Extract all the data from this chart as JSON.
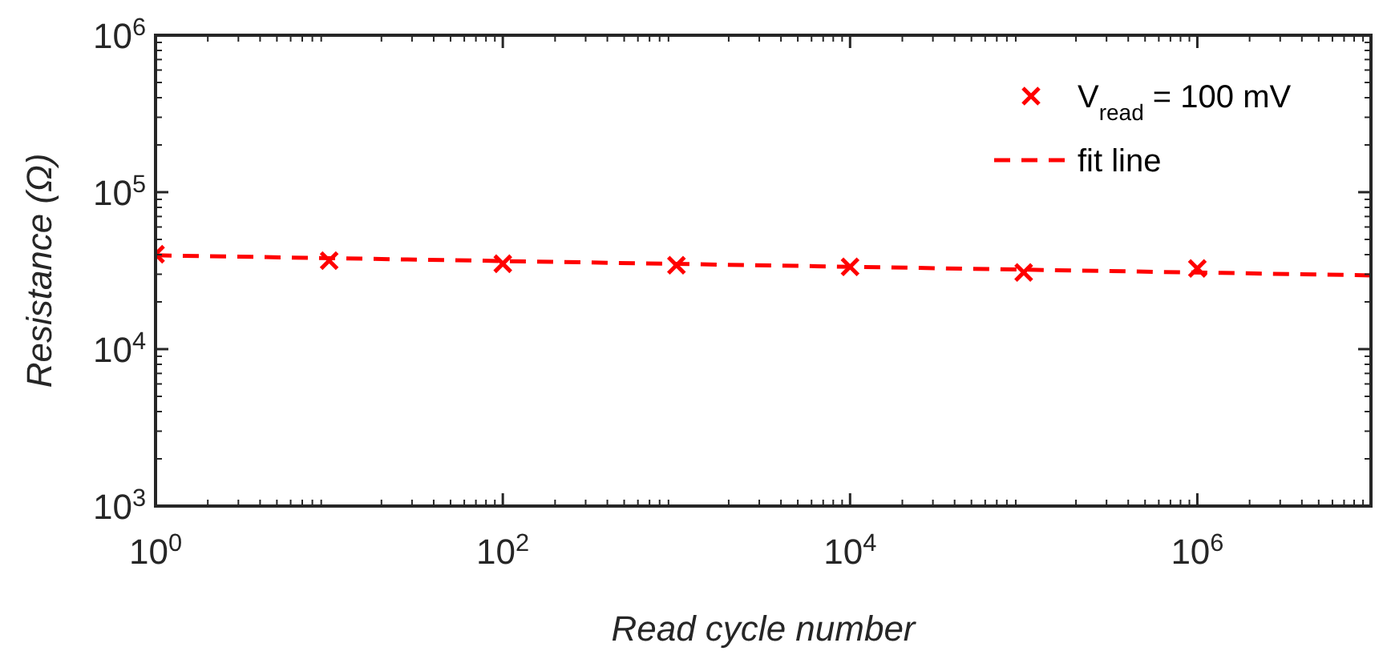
{
  "chart_data": {
    "type": "scatter",
    "xlabel": "Read cycle number",
    "ylabel": "Resistance (Ω)",
    "log": "xy",
    "xlim": [
      1,
      10000000
    ],
    "ylim": [
      1000,
      1000000
    ],
    "xticks": [
      {
        "value": 1,
        "label": "10$^{0}$"
      },
      {
        "value": 100,
        "label": "10$^{2}$"
      },
      {
        "value": 10000,
        "label": "10$^{4}$"
      },
      {
        "value": 1000000,
        "label": "10$^{6}$"
      }
    ],
    "yticks": [
      {
        "value": 1000,
        "label": "10$^{3}$"
      },
      {
        "value": 10000,
        "label": "10$^{4}$"
      },
      {
        "value": 100000,
        "label": "10$^{5}$"
      },
      {
        "value": 1000000,
        "label": "10$^{6}$"
      }
    ],
    "grid": false,
    "legend": "top right",
    "series": [
      {
        "name": "V$_{read}$ = 100 mV",
        "marker": "cross",
        "color": "#ff0000",
        "x": [
          1,
          10,
          100,
          1000,
          10000,
          100000,
          1000000
        ],
        "values": [
          40200,
          36600,
          35000,
          34200,
          33400,
          30800,
          32700
        ]
      },
      {
        "name": "fit line",
        "type": "line",
        "marker": "none",
        "line_style": "dashed",
        "color": "#ff0000",
        "x": [
          1,
          10000000
        ],
        "values": [
          39600,
          29500
        ]
      }
    ]
  }
}
